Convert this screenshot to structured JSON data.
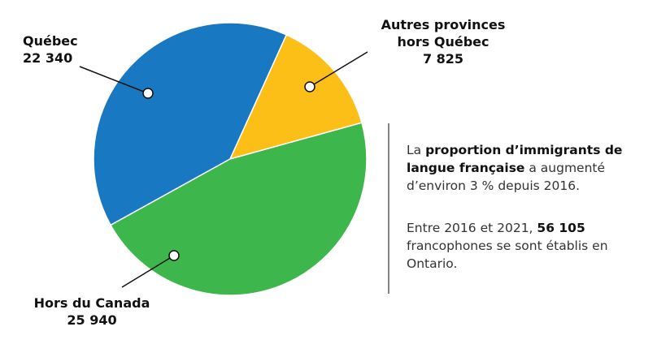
{
  "chart_data": {
    "type": "pie",
    "categories": [
      "Québec",
      "Autres provinces hors Québec",
      "Hors du Canada"
    ],
    "values": [
      22340,
      7825,
      25940
    ],
    "value_labels": [
      "22 340",
      "7 825",
      "25 940"
    ],
    "colors": [
      "#1879c2",
      "#fbbf17",
      "#3db74b"
    ]
  },
  "notes": [
    [
      "La ",
      "proportion d’immigrants de langue française",
      " a augmenté d’environ 3 % depuis 2016."
    ],
    [
      "Entre 2016 et 2021, ",
      "56 105",
      " francophones se sont établis en Ontario."
    ]
  ]
}
